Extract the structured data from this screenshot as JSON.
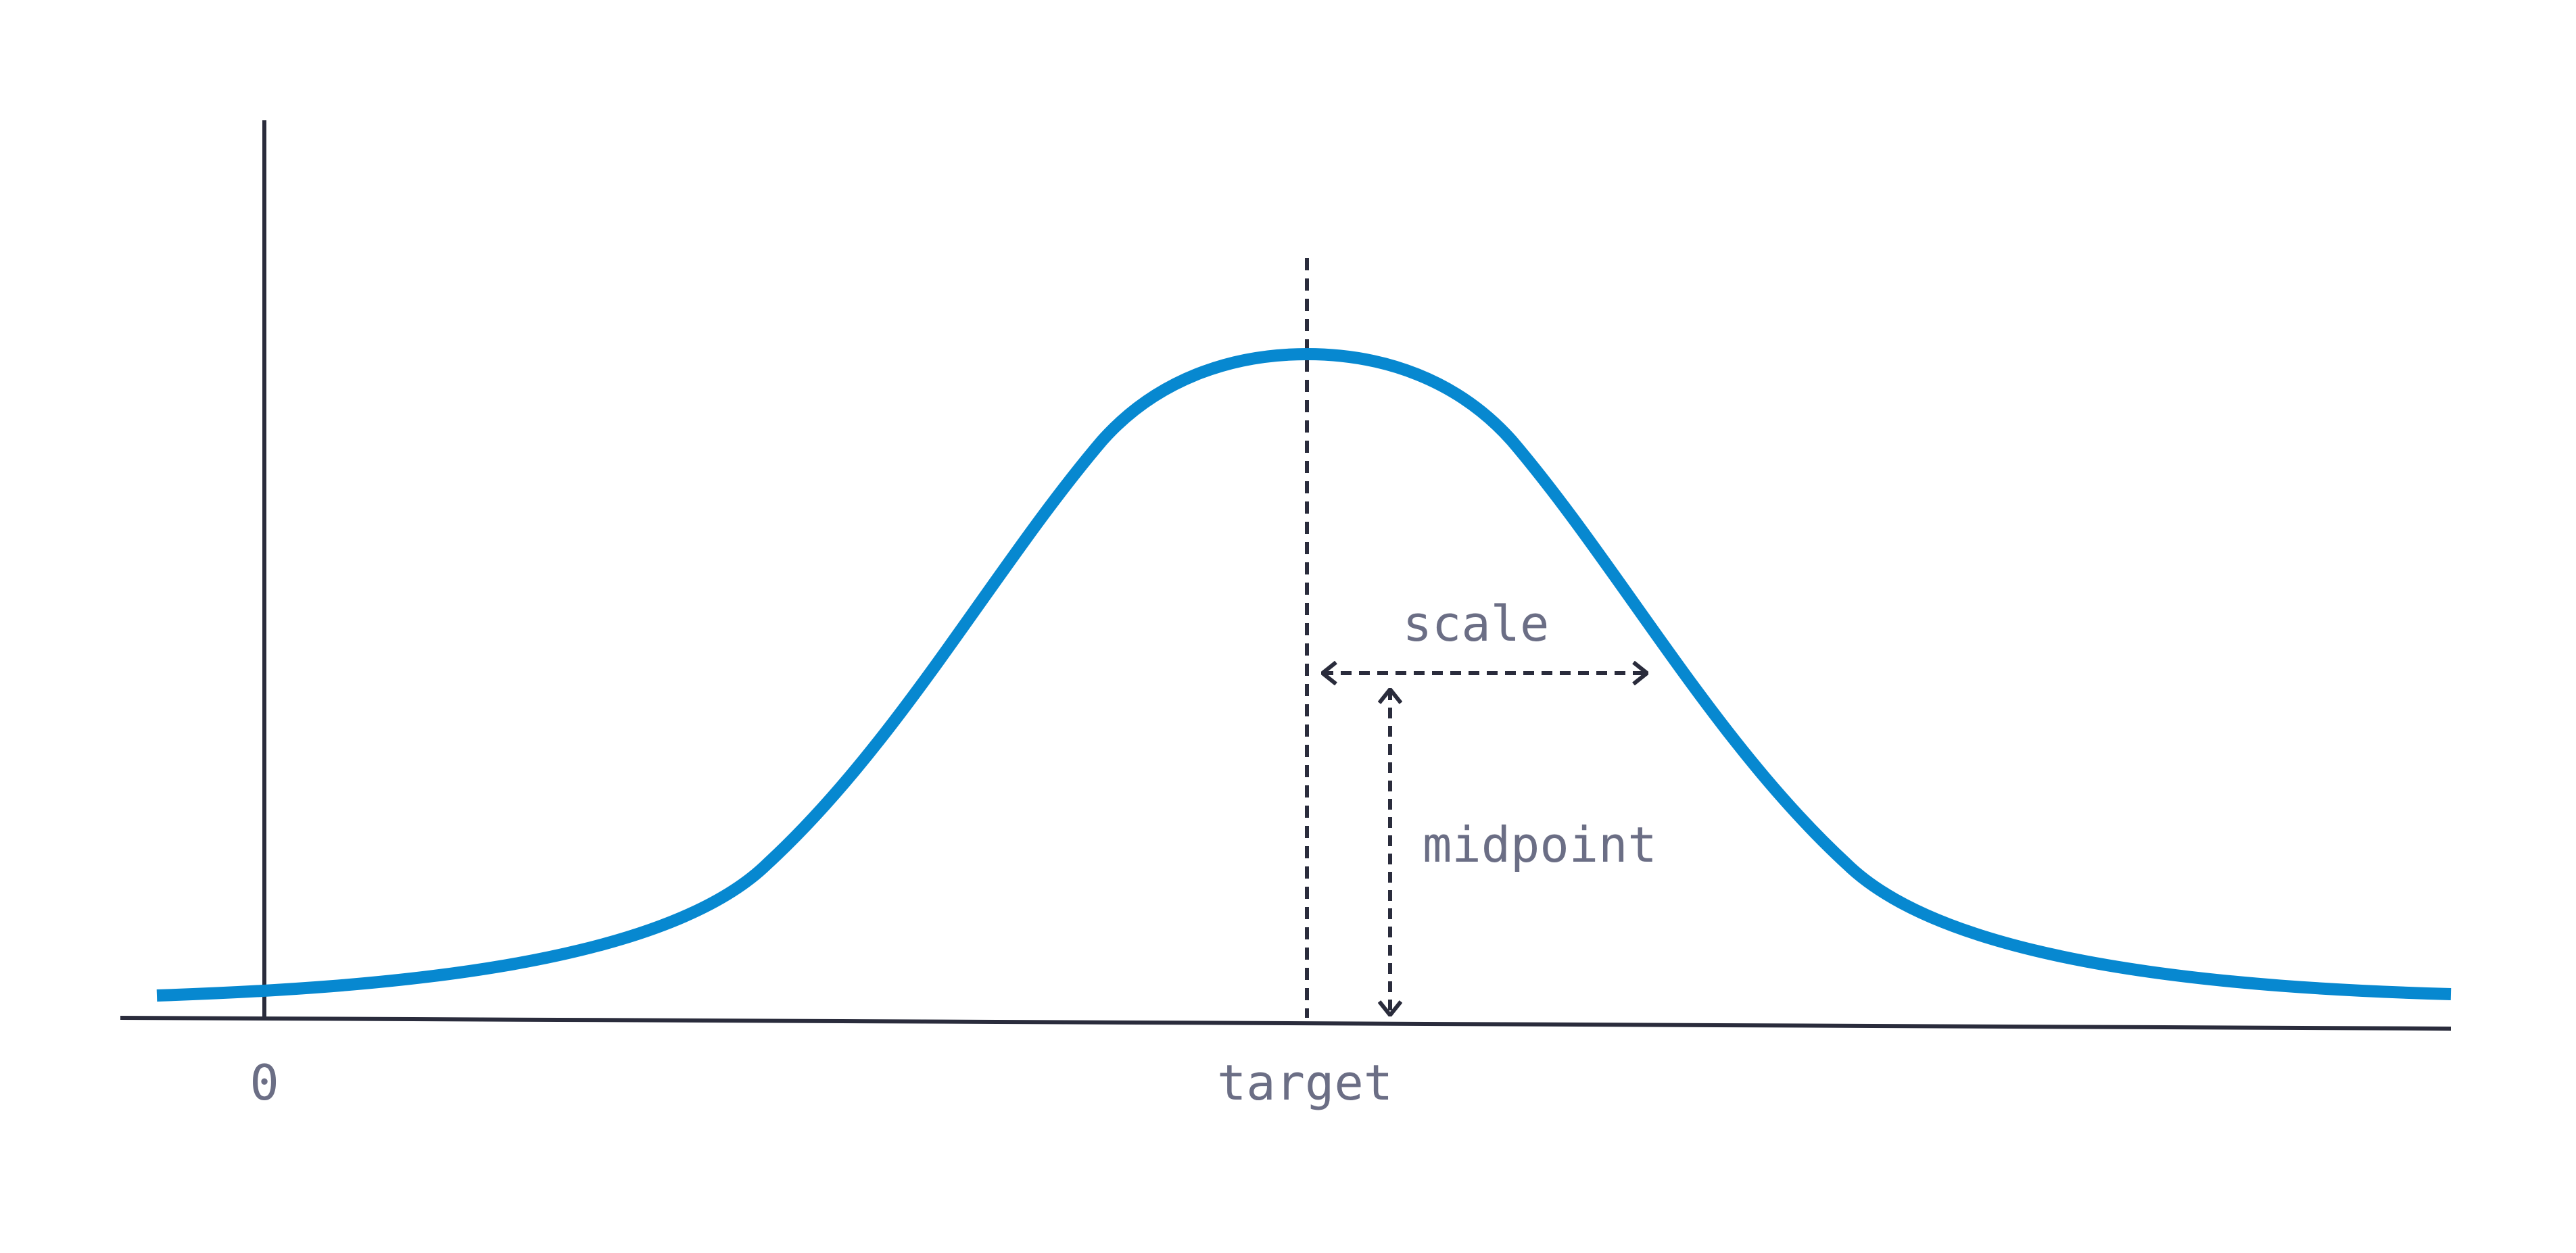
{
  "labels": {
    "origin": "0",
    "target": "target",
    "scale": "scale",
    "midpoint": "midpoint"
  },
  "colors": {
    "curve": "#0788d0",
    "axis": "#2a2c3c",
    "guide": "#2a2c3c",
    "label": "#6b6e85",
    "background": "#ffffff"
  }
}
